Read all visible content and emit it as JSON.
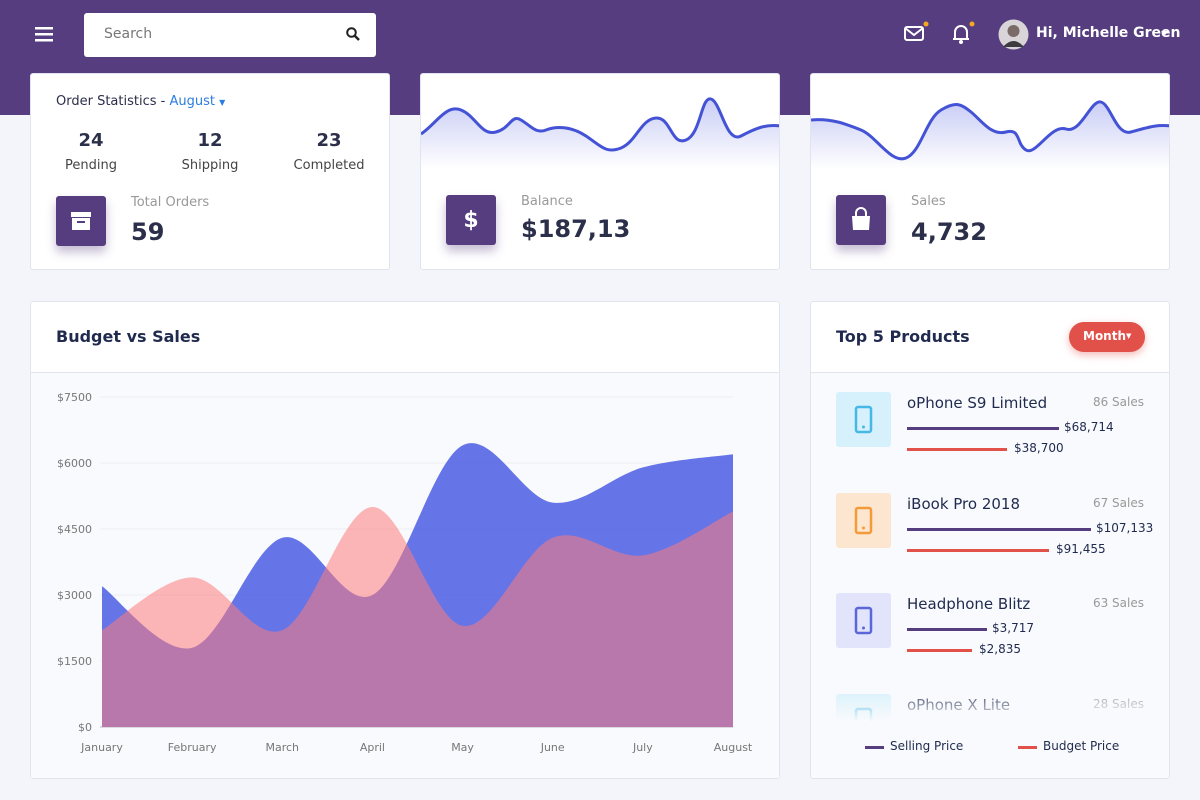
{
  "header": {
    "search_placeholder": "Search",
    "user_greeting": "Hi, Michelle Green"
  },
  "order_stats": {
    "title": "Order Statistics",
    "month": "August",
    "items": [
      {
        "value": 24,
        "label": "Pending"
      },
      {
        "value": 12,
        "label": "Shipping"
      },
      {
        "value": 23,
        "label": "Completed"
      }
    ],
    "total_label": "Total Orders",
    "total": 59
  },
  "balance": {
    "label": "Balance",
    "value": "$187,13"
  },
  "sales": {
    "label": "Sales",
    "value": "4,732"
  },
  "budget_chart": {
    "type": "area",
    "title": "Budget vs Sales",
    "categories": [
      "January",
      "February",
      "March",
      "April",
      "May",
      "June",
      "July",
      "August"
    ],
    "series": [
      {
        "color": "#5465e4",
        "values": [
          3200,
          1800,
          4300,
          3000,
          6400,
          5100,
          5900,
          6200
        ]
      },
      {
        "color": "#ff7b7b",
        "values": [
          2200,
          3400,
          2200,
          5000,
          2300,
          4300,
          3900,
          4900
        ]
      }
    ],
    "ylim": [
      0,
      7500
    ],
    "yticks": [
      {
        "value": 0,
        "label": "$0"
      },
      {
        "value": 1500,
        "label": "$1500"
      },
      {
        "value": 3000,
        "label": "$3000"
      },
      {
        "value": 4500,
        "label": "$4500"
      },
      {
        "value": 6000,
        "label": "$6000"
      },
      {
        "value": 7500,
        "label": "$7500"
      }
    ],
    "grid": true
  },
  "top_products": {
    "title": "Top 5 Products",
    "filter": "Month",
    "items": [
      {
        "name": "oPhone S9 Limited",
        "sales": "86 Sales",
        "selling": "$68,714",
        "budget": "$38,700"
      },
      {
        "name": "iBook Pro 2018",
        "sales": "67 Sales",
        "selling": "$107,133",
        "budget": "$91,455"
      },
      {
        "name": "Headphone Blitz",
        "sales": "63 Sales",
        "selling": "$3,717",
        "budget": "$2,835"
      },
      {
        "name": "oPhone X Lite",
        "sales": "28 Sales"
      }
    ],
    "legend": [
      "Selling Price",
      "Budget Price"
    ]
  }
}
